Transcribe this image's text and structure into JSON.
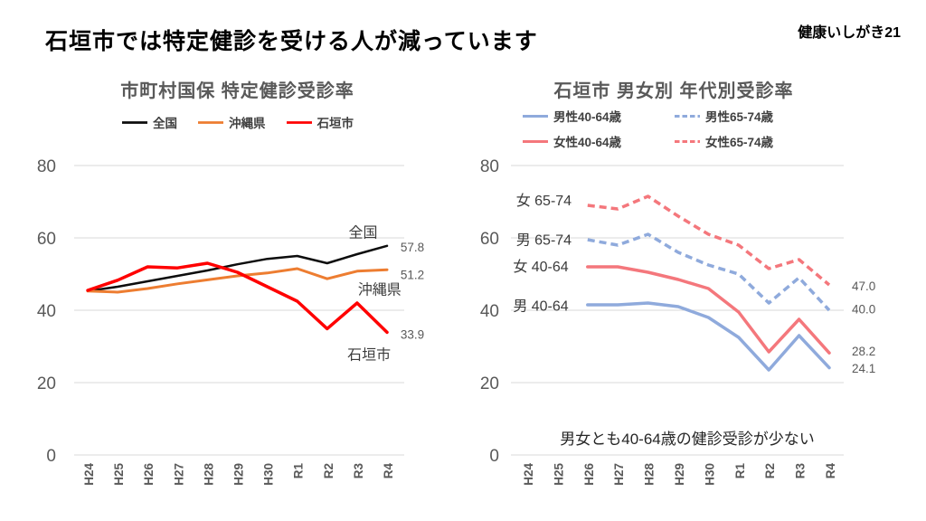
{
  "header": {
    "title": "石垣市では特定健診を受ける人が減っています",
    "brand": "健康いしがき21"
  },
  "chart_data": [
    {
      "type": "line",
      "title": "市町村国保 特定健診受診率",
      "ylim": [
        0,
        80
      ],
      "y_ticks": [
        80,
        60,
        40,
        20,
        0
      ],
      "grid": true,
      "legend_position": "top",
      "categories": [
        "H24",
        "H25",
        "H26",
        "H27",
        "H28",
        "H29",
        "H30",
        "R1",
        "R2",
        "R3",
        "R4"
      ],
      "series": [
        {
          "name": "全国",
          "color": "#0D0D0D",
          "dash": false,
          "width": 2.5,
          "values": [
            45.3,
            46.5,
            48.0,
            49.5,
            51.0,
            52.7,
            54.2,
            55.0,
            53.0,
            55.5,
            57.8
          ]
        },
        {
          "name": "沖縄県",
          "color": "#ED7D31",
          "dash": false,
          "width": 3,
          "values": [
            45.3,
            45.0,
            46.0,
            47.3,
            48.4,
            49.5,
            50.3,
            51.5,
            48.7,
            50.8,
            51.2
          ]
        },
        {
          "name": "石垣市",
          "color": "#FF0000",
          "dash": false,
          "width": 3.5,
          "values": [
            45.5,
            48.3,
            52.0,
            51.7,
            53.0,
            50.5,
            46.5,
            42.5,
            34.9,
            42.0,
            33.9
          ]
        }
      ],
      "annotations": [
        {
          "text": "全国",
          "kind": "series",
          "x": 9.2,
          "v": 61.6,
          "anchor": "middle"
        },
        {
          "text": "57.8",
          "kind": "value",
          "x": 10.45,
          "v": 57.4,
          "anchor": "start"
        },
        {
          "text": "沖縄県",
          "kind": "series",
          "x": 9.75,
          "v": 45.9,
          "anchor": "middle"
        },
        {
          "text": "51.2",
          "kind": "value",
          "x": 10.45,
          "v": 49.7,
          "anchor": "start"
        },
        {
          "text": "石垣市",
          "kind": "series",
          "x": 9.4,
          "v": 27.9,
          "anchor": "middle"
        },
        {
          "text": "33.9",
          "kind": "value",
          "x": 10.45,
          "v": 33.3,
          "anchor": "start"
        }
      ]
    },
    {
      "type": "line",
      "title": "石垣市 男女別 年代別受診率",
      "ylim": [
        0,
        80
      ],
      "y_ticks": [
        80,
        60,
        40,
        20,
        0
      ],
      "grid": true,
      "legend_position": "top",
      "note": "男女とも40-64歳の健診受診が少ない",
      "categories": [
        "H24",
        "H25",
        "H26",
        "H27",
        "H28",
        "H29",
        "H30",
        "R1",
        "R2",
        "R3",
        "R4"
      ],
      "series": [
        {
          "name": "男性40-64歳",
          "color": "#8FAADC",
          "dash": false,
          "width": 3.5,
          "values": [
            null,
            null,
            41.5,
            41.5,
            42.0,
            41.0,
            38.0,
            32.5,
            23.5,
            33.0,
            24.1
          ]
        },
        {
          "name": "男性65-74歳",
          "color": "#8FAADC",
          "dash": true,
          "width": 3.5,
          "values": [
            null,
            null,
            59.5,
            58.0,
            61.0,
            56.0,
            52.5,
            50.0,
            42.0,
            49.0,
            40.0
          ]
        },
        {
          "name": "女性40-64歳",
          "color": "#F4777C",
          "dash": false,
          "width": 3.5,
          "values": [
            null,
            null,
            52.0,
            52.0,
            50.5,
            48.5,
            46.0,
            39.5,
            28.5,
            37.5,
            28.2
          ]
        },
        {
          "name": "女性65-74歳",
          "color": "#F4777C",
          "dash": true,
          "width": 3.5,
          "values": [
            null,
            null,
            69.0,
            68.0,
            71.5,
            66.0,
            61.0,
            58.0,
            51.5,
            54.0,
            47.0
          ]
        }
      ],
      "annotations": [
        {
          "text": "女 65-74",
          "kind": "series",
          "x": 0.55,
          "v": 70.5,
          "anchor": "middle"
        },
        {
          "text": "男 65-74",
          "kind": "series",
          "x": 0.55,
          "v": 59.6,
          "anchor": "middle"
        },
        {
          "text": "女 40-64",
          "kind": "series",
          "x": 0.45,
          "v": 52.2,
          "anchor": "middle"
        },
        {
          "text": "男 40-64",
          "kind": "series",
          "x": 0.45,
          "v": 41.4,
          "anchor": "middle"
        },
        {
          "text": "47.0",
          "kind": "value",
          "x": 10.75,
          "v": 46.6,
          "anchor": "start"
        },
        {
          "text": "40.0",
          "kind": "value",
          "x": 10.75,
          "v": 40.3,
          "anchor": "start"
        },
        {
          "text": "28.2",
          "kind": "value",
          "x": 10.75,
          "v": 28.6,
          "anchor": "start"
        },
        {
          "text": "24.1",
          "kind": "value",
          "x": 10.75,
          "v": 23.9,
          "anchor": "start"
        }
      ]
    }
  ],
  "colors": {
    "grid": "#D9D9D9",
    "axis_text": "#595959",
    "annotation_text": "#3B3B3B",
    "national": "#0D0D0D",
    "okinawa": "#ED7D31",
    "ishigaki": "#FF0000",
    "male": "#8FAADC",
    "female": "#F4777C"
  }
}
